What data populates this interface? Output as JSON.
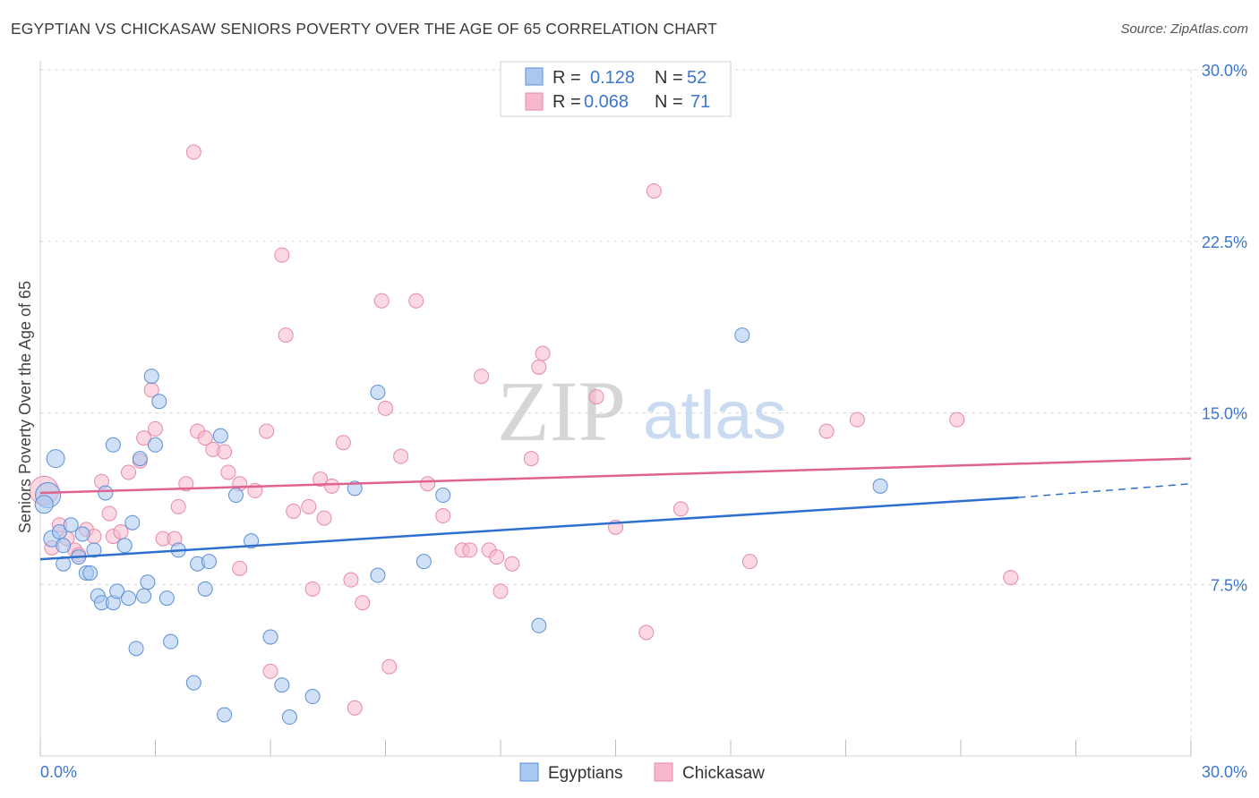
{
  "header": {
    "title": "EGYPTIAN VS CHICKASAW SENIORS POVERTY OVER THE AGE OF 65 CORRELATION CHART",
    "source": "Source: ZipAtlas.com"
  },
  "watermark": {
    "zip": "ZIP",
    "atlas": "atlas"
  },
  "colors": {
    "blue_fill": "#a9c8f0",
    "blue_stroke": "#5b8fd6",
    "blue_line": "#2f6fd0",
    "pink_fill": "#f7b8cb",
    "pink_stroke": "#e68aa6",
    "pink_line": "#e0628e",
    "grid": "#d9d9d9",
    "accent_text": "#3d76cc"
  },
  "legend": {
    "rows": [
      {
        "r_label": "R =",
        "r_value": "0.128",
        "n_label": "N =",
        "n_value": "52"
      },
      {
        "r_label": "R =",
        "r_value": "0.068",
        "n_label": "N =",
        "n_value": "71"
      }
    ]
  },
  "bottom_legend": {
    "items": [
      "Egyptians",
      "Chickasaw"
    ]
  },
  "chart_data": {
    "type": "scatter",
    "title": "EGYPTIAN VS CHICKASAW SENIORS POVERTY OVER THE AGE OF 65 CORRELATION CHART",
    "xlabel": "",
    "ylabel": "Seniors Poverty Over the Age of 65",
    "xlim": [
      0,
      30
    ],
    "ylim": [
      0,
      30
    ],
    "x_tick_labels": [
      "0.0%",
      "30.0%"
    ],
    "y_ticks": [
      7.5,
      15.0,
      22.5,
      30.0
    ],
    "y_tick_labels": [
      "7.5%",
      "15.0%",
      "22.5%",
      "30.0%"
    ],
    "grid": true,
    "series": [
      {
        "name": "Egyptians",
        "r": 0.128,
        "n": 52,
        "trend": {
          "x0": 0,
          "y0": 8.6,
          "x1": 25.5,
          "y1": 11.3,
          "dash_to_x": 30,
          "dash_to_y": 11.9
        },
        "points": [
          [
            0.2,
            11.4,
            14
          ],
          [
            0.4,
            13.0,
            10
          ],
          [
            0.3,
            9.5,
            9
          ],
          [
            0.5,
            9.8,
            8
          ],
          [
            0.6,
            9.2,
            8
          ],
          [
            0.6,
            8.4,
            8
          ],
          [
            0.8,
            10.1,
            8
          ],
          [
            1.0,
            8.7,
            8
          ],
          [
            1.1,
            9.7,
            8
          ],
          [
            1.2,
            8.0,
            8
          ],
          [
            1.3,
            8.0,
            8
          ],
          [
            1.4,
            9.0,
            8
          ],
          [
            1.5,
            7.0,
            8
          ],
          [
            1.6,
            6.7,
            8
          ],
          [
            1.7,
            11.5,
            8
          ],
          [
            1.9,
            6.7,
            8
          ],
          [
            1.9,
            13.6,
            8
          ],
          [
            2.0,
            7.2,
            8
          ],
          [
            2.2,
            9.2,
            8
          ],
          [
            2.3,
            6.9,
            8
          ],
          [
            2.4,
            10.2,
            8
          ],
          [
            2.5,
            4.7,
            8
          ],
          [
            2.6,
            13.0,
            8
          ],
          [
            2.7,
            7.0,
            8
          ],
          [
            2.8,
            7.6,
            8
          ],
          [
            2.9,
            16.6,
            8
          ],
          [
            3.0,
            13.6,
            8
          ],
          [
            3.1,
            15.5,
            8
          ],
          [
            3.3,
            6.9,
            8
          ],
          [
            3.4,
            5.0,
            8
          ],
          [
            3.6,
            9.0,
            8
          ],
          [
            4.0,
            3.2,
            8
          ],
          [
            4.1,
            8.4,
            8
          ],
          [
            4.3,
            7.3,
            8
          ],
          [
            4.4,
            8.5,
            8
          ],
          [
            4.7,
            14.0,
            8
          ],
          [
            4.8,
            1.8,
            8
          ],
          [
            5.1,
            11.4,
            8
          ],
          [
            5.5,
            9.4,
            8
          ],
          [
            6.0,
            5.2,
            8
          ],
          [
            6.3,
            3.1,
            8
          ],
          [
            6.5,
            1.7,
            8
          ],
          [
            7.1,
            2.6,
            8
          ],
          [
            8.2,
            11.7,
            8
          ],
          [
            8.8,
            7.9,
            8
          ],
          [
            8.8,
            15.9,
            8
          ],
          [
            10.0,
            8.5,
            8
          ],
          [
            10.5,
            11.4,
            8
          ],
          [
            13.0,
            5.7,
            8
          ],
          [
            18.3,
            18.4,
            8
          ],
          [
            21.9,
            11.8,
            8
          ],
          [
            0.1,
            11.0,
            10
          ]
        ]
      },
      {
        "name": "Chickasaw",
        "r": 0.068,
        "n": 71,
        "trend": {
          "x0": 0,
          "y0": 11.5,
          "x1": 30,
          "y1": 13.0
        },
        "points": [
          [
            0.1,
            11.6,
            16
          ],
          [
            0.3,
            9.1,
            8
          ],
          [
            0.5,
            10.1,
            8
          ],
          [
            0.7,
            9.5,
            8
          ],
          [
            0.9,
            9.0,
            8
          ],
          [
            1.0,
            8.8,
            8
          ],
          [
            1.2,
            9.9,
            8
          ],
          [
            1.4,
            9.6,
            8
          ],
          [
            1.6,
            12.0,
            8
          ],
          [
            1.8,
            10.6,
            8
          ],
          [
            1.9,
            9.6,
            8
          ],
          [
            2.1,
            9.8,
            8
          ],
          [
            2.3,
            12.4,
            8
          ],
          [
            2.6,
            12.9,
            8
          ],
          [
            2.7,
            13.9,
            8
          ],
          [
            2.9,
            16.0,
            8
          ],
          [
            3.0,
            14.3,
            8
          ],
          [
            3.2,
            9.5,
            8
          ],
          [
            3.5,
            9.5,
            8
          ],
          [
            3.6,
            10.9,
            8
          ],
          [
            3.8,
            11.9,
            8
          ],
          [
            4.0,
            26.4,
            8
          ],
          [
            4.1,
            14.2,
            8
          ],
          [
            4.3,
            13.9,
            8
          ],
          [
            4.5,
            13.4,
            8
          ],
          [
            4.8,
            13.3,
            8
          ],
          [
            4.9,
            12.4,
            8
          ],
          [
            5.2,
            11.9,
            8
          ],
          [
            5.2,
            8.2,
            8
          ],
          [
            5.6,
            11.6,
            8
          ],
          [
            5.9,
            14.2,
            8
          ],
          [
            6.0,
            3.7,
            8
          ],
          [
            6.3,
            21.9,
            8
          ],
          [
            6.4,
            18.4,
            8
          ],
          [
            6.6,
            10.7,
            8
          ],
          [
            7.0,
            10.9,
            8
          ],
          [
            7.1,
            7.3,
            8
          ],
          [
            7.3,
            12.1,
            8
          ],
          [
            7.4,
            10.4,
            8
          ],
          [
            7.6,
            11.8,
            8
          ],
          [
            7.9,
            13.7,
            8
          ],
          [
            8.1,
            7.7,
            8
          ],
          [
            8.2,
            2.1,
            8
          ],
          [
            8.4,
            6.7,
            8
          ],
          [
            8.9,
            19.9,
            8
          ],
          [
            9.0,
            15.2,
            8
          ],
          [
            9.1,
            3.9,
            8
          ],
          [
            9.4,
            13.1,
            8
          ],
          [
            9.8,
            19.9,
            8
          ],
          [
            10.1,
            11.9,
            8
          ],
          [
            10.5,
            10.5,
            8
          ],
          [
            11.0,
            9.0,
            8
          ],
          [
            11.2,
            9.0,
            8
          ],
          [
            11.5,
            16.6,
            8
          ],
          [
            11.7,
            9.0,
            8
          ],
          [
            11.9,
            8.7,
            8
          ],
          [
            12.0,
            7.2,
            8
          ],
          [
            12.3,
            8.4,
            8
          ],
          [
            12.8,
            13.0,
            8
          ],
          [
            13.0,
            17.0,
            8
          ],
          [
            13.1,
            17.6,
            8
          ],
          [
            14.5,
            15.7,
            8
          ],
          [
            15.0,
            10.0,
            8
          ],
          [
            15.8,
            5.4,
            8
          ],
          [
            16.0,
            24.7,
            8
          ],
          [
            16.7,
            10.8,
            8
          ],
          [
            18.5,
            8.5,
            8
          ],
          [
            20.5,
            14.2,
            8
          ],
          [
            21.3,
            14.7,
            8
          ],
          [
            23.9,
            14.7,
            8
          ],
          [
            25.3,
            7.8,
            8
          ]
        ]
      }
    ]
  }
}
